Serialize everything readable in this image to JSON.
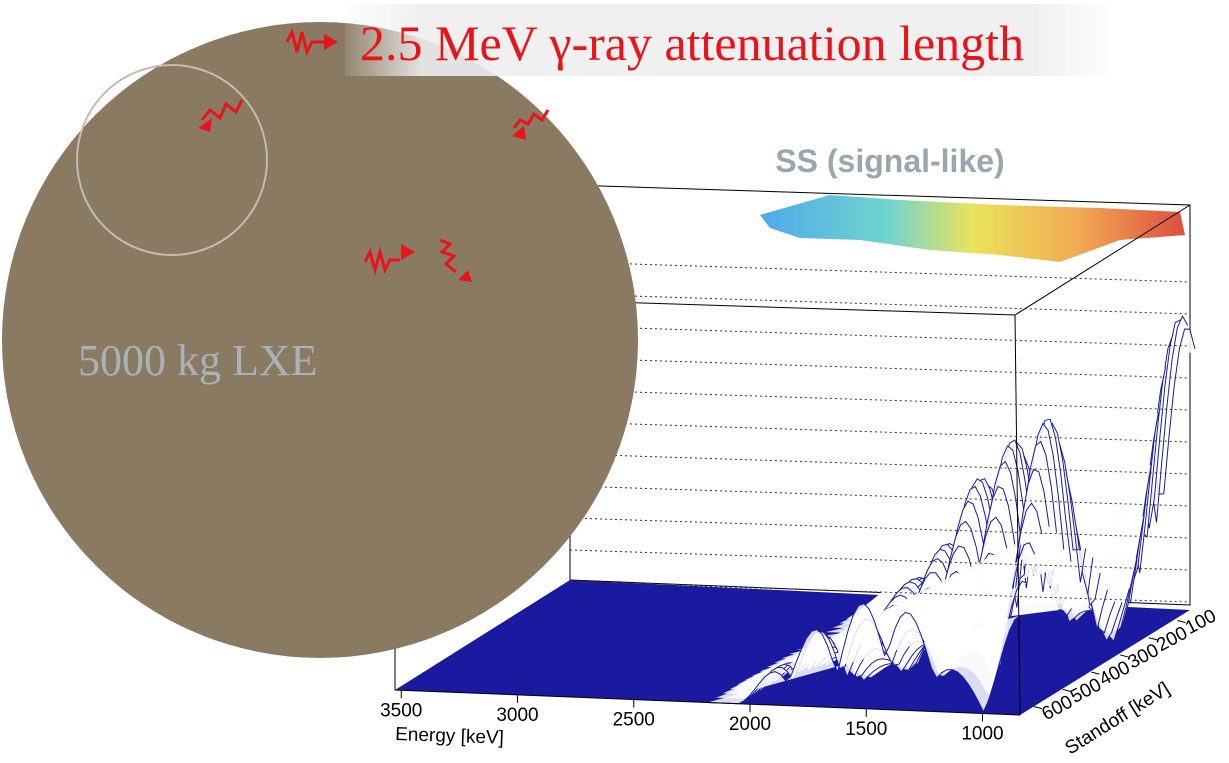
{
  "header": {
    "title": "2.5 MeV γ-ray attenuation length"
  },
  "detector": {
    "label": "5000 kg LXE"
  },
  "plot": {
    "title": "SS (signal-like)",
    "x_axis": {
      "label": "Energy [keV]",
      "ticks": [
        3500,
        3000,
        2500,
        2000,
        1500,
        1000
      ]
    },
    "y_axis": {
      "label": "Standoff [keV]",
      "ticks": [
        100,
        200,
        300,
        400,
        500,
        600
      ]
    }
  }
}
